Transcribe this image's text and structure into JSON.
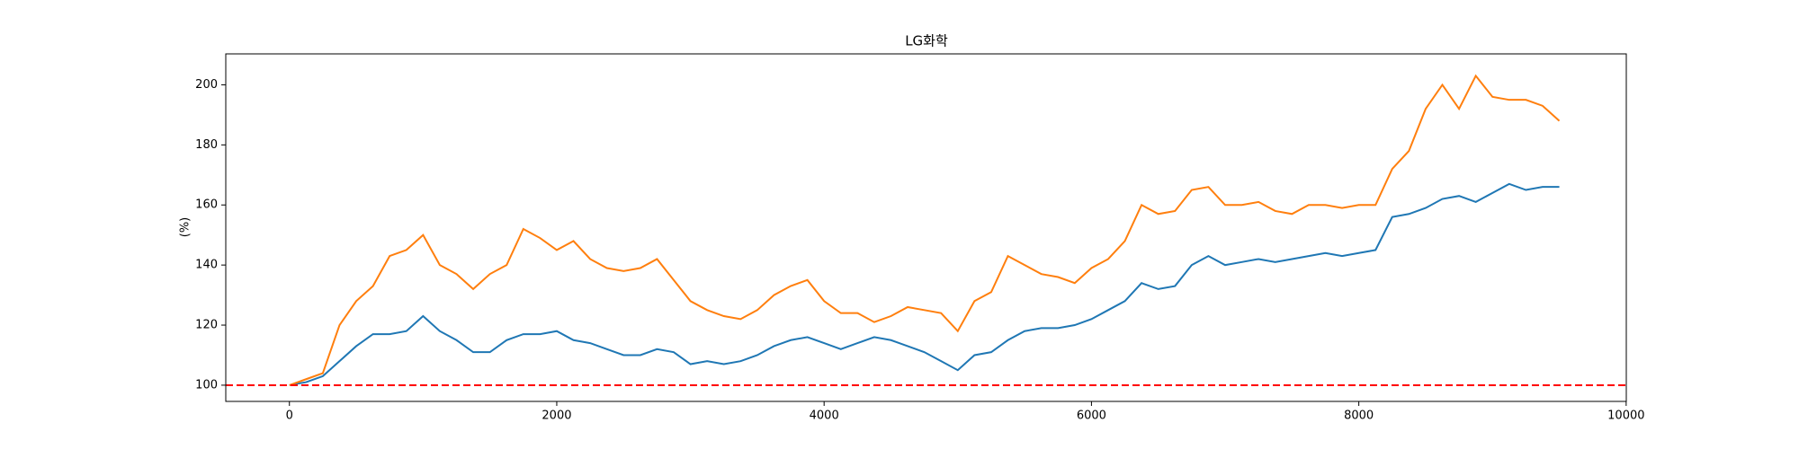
{
  "chart_data": {
    "type": "line",
    "title": "LG화학",
    "y_label": "(%)",
    "x": [
      0,
      125,
      250,
      375,
      500,
      625,
      750,
      875,
      1000,
      1125,
      1250,
      1375,
      1500,
      1625,
      1750,
      1875,
      2000,
      2125,
      2250,
      2375,
      2500,
      2625,
      2750,
      2875,
      3000,
      3125,
      3250,
      3375,
      3500,
      3625,
      3750,
      3875,
      4000,
      4125,
      4250,
      4375,
      4500,
      4625,
      4750,
      4875,
      5000,
      5125,
      5250,
      5375,
      5500,
      5625,
      5750,
      5875,
      6000,
      6125,
      6250,
      6375,
      6500,
      6625,
      6750,
      6875,
      7000,
      7125,
      7250,
      7375,
      7500,
      7625,
      7750,
      7875,
      8000,
      8125,
      8250,
      8375,
      8500,
      8625,
      8750,
      8875,
      9000,
      9125,
      9250,
      9375,
      9500
    ],
    "series": [
      {
        "color": "#1f77b4",
        "values": [
          100,
          101,
          103,
          108,
          113,
          117,
          117,
          118,
          123,
          118,
          115,
          111,
          111,
          115,
          117,
          117,
          118,
          115,
          114,
          112,
          110,
          110,
          112,
          111,
          107,
          108,
          107,
          108,
          110,
          113,
          115,
          116,
          114,
          112,
          114,
          116,
          115,
          113,
          111,
          108,
          105,
          110,
          111,
          115,
          118,
          119,
          119,
          120,
          122,
          125,
          128,
          134,
          132,
          133,
          140,
          143,
          140,
          141,
          142,
          141,
          142,
          143,
          144,
          143,
          144,
          145,
          156,
          157,
          159,
          162,
          163,
          161,
          164,
          167,
          165,
          166,
          166
        ]
      },
      {
        "color": "#ff7f0e",
        "values": [
          100,
          102,
          104,
          120,
          128,
          133,
          143,
          145,
          150,
          140,
          137,
          132,
          137,
          140,
          152,
          149,
          145,
          148,
          142,
          139,
          138,
          139,
          142,
          135,
          128,
          125,
          123,
          122,
          125,
          130,
          133,
          135,
          128,
          124,
          124,
          121,
          123,
          126,
          125,
          124,
          118,
          128,
          131,
          143,
          140,
          137,
          136,
          134,
          139,
          142,
          148,
          160,
          157,
          158,
          165,
          166,
          160,
          160,
          161,
          158,
          157,
          160,
          160,
          159,
          160,
          160,
          172,
          178,
          192,
          200,
          192,
          203,
          196,
          195,
          195,
          193,
          188
        ]
      }
    ],
    "hline": {
      "value": 100,
      "color": "#ff0000",
      "dashed": true
    },
    "xlim": [
      -476,
      10001
    ],
    "ylim": [
      94.6,
      210.3
    ],
    "xticks": [
      0,
      2000,
      4000,
      6000,
      8000,
      10000
    ],
    "yticks": [
      100,
      120,
      140,
      160,
      180,
      200
    ]
  }
}
